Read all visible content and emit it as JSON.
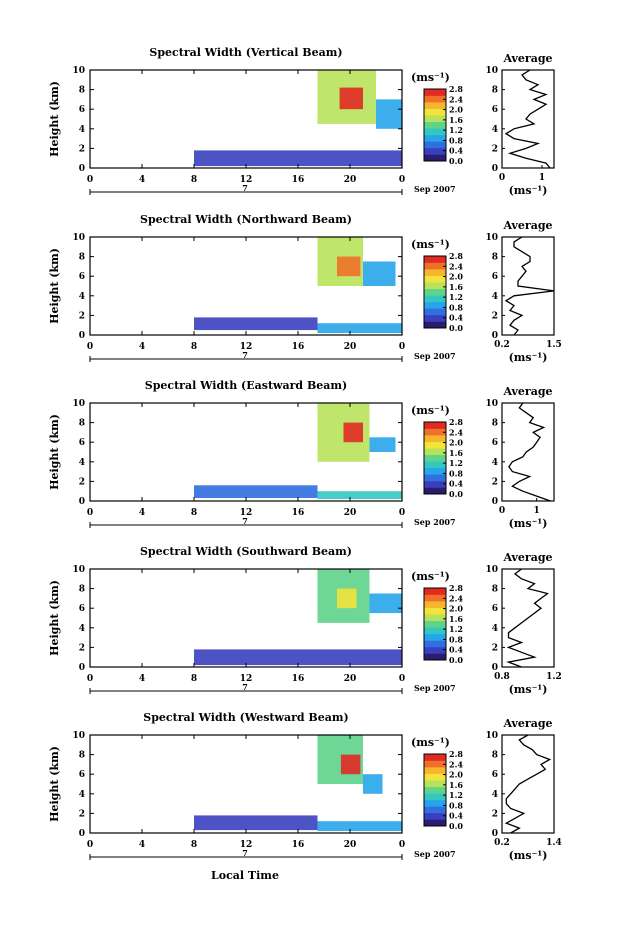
{
  "figure": {
    "xlabel": "Local Time",
    "date_label": "Sep 2007",
    "day_label": "7",
    "colorbar_unit": "(ms⁻¹)",
    "colorbar_ticks": [
      "0.0",
      "0.4",
      "0.8",
      "1.2",
      "1.6",
      "2.0",
      "2.4",
      "2.8"
    ],
    "colormap": [
      "#2b1d6e",
      "#3a3fbf",
      "#2f6fe0",
      "#28a5ea",
      "#33c7c2",
      "#5fd38a",
      "#b8e25a",
      "#f2e43a",
      "#f5b52d",
      "#f0702a",
      "#e02a23"
    ],
    "avg_title": "Average",
    "avg_xlabel": "(ms⁻¹)",
    "y_label": "Height (km)"
  },
  "chart_data": [
    {
      "type": "heatmap",
      "title": "Spectral Width (Vertical Beam)",
      "ylabel": "Height (km)",
      "xlim": [
        0,
        24
      ],
      "ylim": [
        0,
        10
      ],
      "xticks": [
        "0",
        "4",
        "8",
        "12",
        "16",
        "20",
        "0"
      ],
      "yticks": [
        "0",
        "2",
        "4",
        "6",
        "8",
        "10"
      ],
      "color_range": [
        0.0,
        2.8
      ],
      "regions": [
        {
          "x": [
            8,
            24
          ],
          "y": [
            0.2,
            1.8
          ],
          "value": 0.5
        },
        {
          "x": [
            17.5,
            22
          ],
          "y": [
            4.5,
            10
          ],
          "value": 1.6
        },
        {
          "x": [
            19.2,
            21
          ],
          "y": [
            6,
            8.2
          ],
          "value": 2.6
        },
        {
          "x": [
            22,
            24
          ],
          "y": [
            4,
            7
          ],
          "value": 1.0
        }
      ],
      "average": {
        "title": "Average",
        "xlim": [
          0,
          1.3
        ],
        "xticks": [
          "0",
          "1"
        ],
        "xlabel": "(ms⁻¹)",
        "height": [
          0,
          0.5,
          1,
          1.5,
          2,
          2.5,
          3,
          3.5,
          4,
          4.5,
          5,
          5.5,
          6,
          6.5,
          7,
          7.5,
          8,
          8.5,
          9,
          9.5,
          10
        ],
        "width": [
          1.2,
          1.1,
          0.6,
          0.2,
          0.6,
          0.9,
          0.3,
          0.1,
          0.3,
          0.8,
          0.6,
          0.7,
          0.9,
          1.1,
          0.8,
          1.1,
          0.7,
          0.9,
          0.6,
          0.5,
          0.7
        ]
      }
    },
    {
      "type": "heatmap",
      "title": "Spectral Width (Northward Beam)",
      "ylabel": "Height (km)",
      "xlim": [
        0,
        24
      ],
      "ylim": [
        0,
        10
      ],
      "xticks": [
        "0",
        "4",
        "8",
        "12",
        "16",
        "20",
        "0"
      ],
      "yticks": [
        "0",
        "2",
        "4",
        "6",
        "8",
        "10"
      ],
      "color_range": [
        0.0,
        2.8
      ],
      "regions": [
        {
          "x": [
            8,
            17.5
          ],
          "y": [
            0.5,
            1.8
          ],
          "value": 0.5
        },
        {
          "x": [
            17.5,
            24
          ],
          "y": [
            0.2,
            1.2
          ],
          "value": 1.0
        },
        {
          "x": [
            17.5,
            21
          ],
          "y": [
            5,
            10
          ],
          "value": 1.6
        },
        {
          "x": [
            19,
            20.8
          ],
          "y": [
            6,
            8
          ],
          "value": 2.5
        },
        {
          "x": [
            21,
            23.5
          ],
          "y": [
            5,
            7.5
          ],
          "value": 1.0
        }
      ],
      "average": {
        "title": "Average",
        "xlim": [
          0.2,
          1.5
        ],
        "xticks": [
          "0.2",
          "1.5"
        ],
        "xlabel": "(ms⁻¹)",
        "height": [
          0,
          0.5,
          1,
          1.5,
          2,
          2.5,
          3,
          3.5,
          4,
          4.5,
          5,
          5.5,
          6,
          6.5,
          7,
          7.5,
          8,
          8.5,
          9,
          9.5,
          10
        ],
        "width": [
          0.5,
          0.6,
          0.4,
          0.5,
          0.7,
          0.4,
          0.5,
          0.3,
          0.5,
          1.5,
          0.6,
          0.6,
          0.7,
          0.8,
          0.7,
          0.9,
          0.9,
          0.7,
          0.5,
          0.5,
          0.7
        ]
      }
    },
    {
      "type": "heatmap",
      "title": "Spectral Width (Eastward Beam)",
      "ylabel": "Height (km)",
      "xlim": [
        0,
        24
      ],
      "ylim": [
        0,
        10
      ],
      "xticks": [
        "0",
        "4",
        "8",
        "12",
        "16",
        "20",
        "0"
      ],
      "yticks": [
        "0",
        "2",
        "4",
        "6",
        "8",
        "10"
      ],
      "color_range": [
        0.0,
        2.8
      ],
      "regions": [
        {
          "x": [
            8,
            17.5
          ],
          "y": [
            0.3,
            1.6
          ],
          "value": 0.6
        },
        {
          "x": [
            17.5,
            24
          ],
          "y": [
            0.2,
            1.0
          ],
          "value": 1.2
        },
        {
          "x": [
            17.5,
            21.5
          ],
          "y": [
            4,
            10
          ],
          "value": 1.7
        },
        {
          "x": [
            19.5,
            21
          ],
          "y": [
            6,
            8
          ],
          "value": 2.7
        },
        {
          "x": [
            21.5,
            23.5
          ],
          "y": [
            5,
            6.5
          ],
          "value": 1.0
        }
      ],
      "average": {
        "title": "Average",
        "xlim": [
          0,
          1.5
        ],
        "xticks": [
          "0",
          "1"
        ],
        "xlabel": "(ms⁻¹)",
        "height": [
          0,
          0.5,
          1,
          1.5,
          2,
          2.5,
          3,
          3.5,
          4,
          4.5,
          5,
          5.5,
          6,
          6.5,
          7,
          7.5,
          8,
          8.5,
          9,
          9.5,
          10
        ],
        "width": [
          1.4,
          1.0,
          0.6,
          0.3,
          0.5,
          0.8,
          0.3,
          0.2,
          0.3,
          0.6,
          0.7,
          0.9,
          1.0,
          1.1,
          0.9,
          1.2,
          0.8,
          0.9,
          0.7,
          0.5,
          0.6
        ]
      }
    },
    {
      "type": "heatmap",
      "title": "Spectral Width (Southward Beam)",
      "ylabel": "Height (km)",
      "xlim": [
        0,
        24
      ],
      "ylim": [
        0,
        10
      ],
      "xticks": [
        "0",
        "4",
        "8",
        "12",
        "16",
        "20",
        "0"
      ],
      "yticks": [
        "0",
        "2",
        "4",
        "6",
        "8",
        "10"
      ],
      "color_range": [
        0.0,
        2.8
      ],
      "regions": [
        {
          "x": [
            8,
            24
          ],
          "y": [
            0.2,
            1.8
          ],
          "value": 0.5
        },
        {
          "x": [
            17.5,
            21.5
          ],
          "y": [
            4.5,
            10
          ],
          "value": 1.5
        },
        {
          "x": [
            19,
            20.5
          ],
          "y": [
            6,
            8
          ],
          "value": 2.0
        },
        {
          "x": [
            21.5,
            24
          ],
          "y": [
            5.5,
            7.5
          ],
          "value": 1.0
        }
      ],
      "average": {
        "title": "Average",
        "xlim": [
          0.8,
          1.2
        ],
        "xticks": [
          "0.8",
          "1.2"
        ],
        "xlabel": "(ms⁻¹)",
        "height": [
          0,
          0.5,
          1,
          1.5,
          2,
          2.5,
          3,
          3.5,
          4,
          4.5,
          5,
          5.5,
          6,
          6.5,
          7,
          7.5,
          8,
          8.5,
          9,
          9.5,
          10
        ],
        "width": [
          0.95,
          0.85,
          1.05,
          0.95,
          0.85,
          0.95,
          0.85,
          0.85,
          0.9,
          0.95,
          1.0,
          1.05,
          1.1,
          1.05,
          1.1,
          1.15,
          1.0,
          1.05,
          0.95,
          0.9,
          0.95
        ]
      }
    },
    {
      "type": "heatmap",
      "title": "Spectral Width (Westward Beam)",
      "ylabel": "Height (km)",
      "xlim": [
        0,
        24
      ],
      "ylim": [
        0,
        10
      ],
      "xticks": [
        "0",
        "4",
        "8",
        "12",
        "16",
        "20",
        "0"
      ],
      "yticks": [
        "0",
        "2",
        "4",
        "6",
        "8",
        "10"
      ],
      "color_range": [
        0.0,
        2.8
      ],
      "regions": [
        {
          "x": [
            8,
            17.5
          ],
          "y": [
            0.3,
            1.8
          ],
          "value": 0.5
        },
        {
          "x": [
            17.5,
            24
          ],
          "y": [
            0.2,
            1.2
          ],
          "value": 0.8
        },
        {
          "x": [
            17.5,
            21
          ],
          "y": [
            5,
            10
          ],
          "value": 1.5
        },
        {
          "x": [
            19.3,
            20.8
          ],
          "y": [
            6,
            8
          ],
          "value": 2.6
        },
        {
          "x": [
            21,
            22.5
          ],
          "y": [
            4,
            6
          ],
          "value": 1.0
        }
      ],
      "average": {
        "title": "Average",
        "xlim": [
          0.2,
          1.4
        ],
        "xticks": [
          "0.2",
          "1.4"
        ],
        "xlabel": "(ms⁻¹)",
        "height": [
          0,
          0.5,
          1,
          1.5,
          2,
          2.5,
          3,
          3.5,
          4,
          4.5,
          5,
          5.5,
          6,
          6.5,
          7,
          7.5,
          8,
          8.5,
          9,
          9.5,
          10
        ],
        "width": [
          0.4,
          0.6,
          0.3,
          0.5,
          0.7,
          0.4,
          0.3,
          0.3,
          0.4,
          0.5,
          0.6,
          0.8,
          1.0,
          1.2,
          1.1,
          1.3,
          1.0,
          0.9,
          0.7,
          0.6,
          0.8
        ]
      }
    }
  ]
}
